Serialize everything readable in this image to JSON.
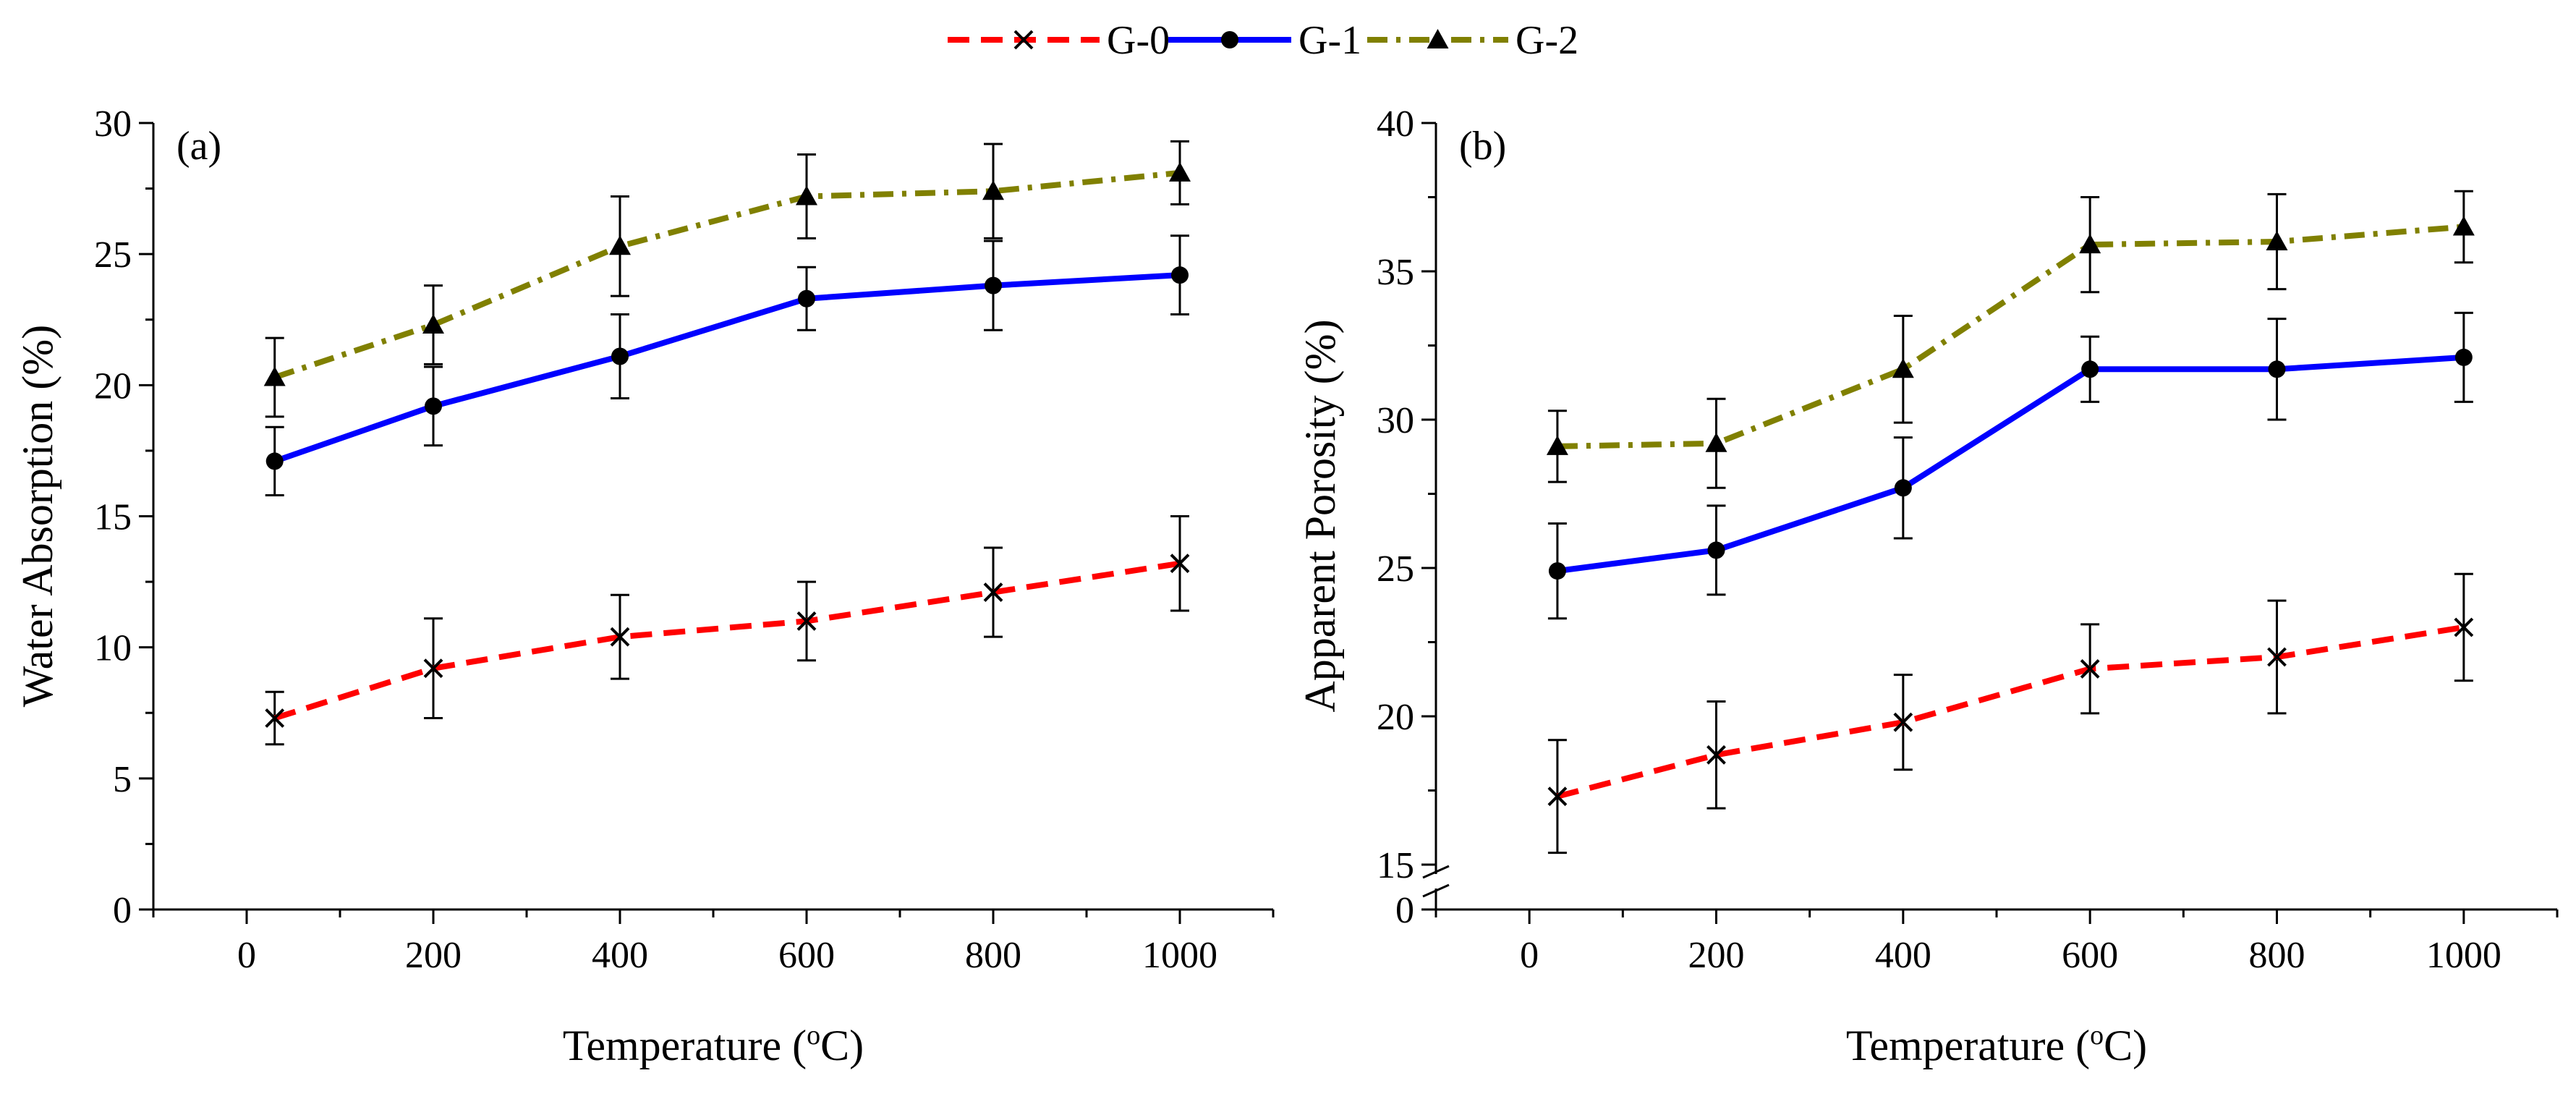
{
  "legend": [
    {
      "label": "G-0",
      "color": "#ff0000",
      "marker": "cross-icon",
      "dash": "dashed"
    },
    {
      "label": "G-1",
      "color": "#0000ff",
      "marker": "circle-icon",
      "dash": "solid"
    },
    {
      "label": "G-2",
      "color": "#808000",
      "marker": "triangle-icon",
      "dash": "dashdot"
    }
  ],
  "chart_data": [
    {
      "type": "line",
      "panel_label": "(a)",
      "xlabel": "Temperature (",
      "xlabel_sup": "o",
      "xlabel_end": "C)",
      "ylabel": "Water Absorption (%)",
      "xlim": [
        -100,
        1100
      ],
      "ylim": [
        0,
        30
      ],
      "xticks": [
        0,
        200,
        400,
        600,
        800,
        1000
      ],
      "xtick_labels": [
        "0",
        "200",
        "400",
        "600",
        "800",
        "1000"
      ],
      "yticks": [
        0,
        5,
        10,
        15,
        20,
        25,
        30
      ],
      "ytick_labels": [
        "0",
        "5",
        "10",
        "15",
        "20",
        "25",
        "30"
      ],
      "x": [
        30,
        200,
        400,
        600,
        800,
        1000
      ],
      "series": [
        {
          "name": "G-0",
          "values": [
            7.3,
            9.2,
            10.4,
            11.0,
            12.1,
            13.2
          ],
          "errors": [
            1.0,
            1.9,
            1.6,
            1.5,
            1.7,
            1.8
          ]
        },
        {
          "name": "G-1",
          "values": [
            17.1,
            19.2,
            21.1,
            23.3,
            23.8,
            24.2
          ],
          "errors": [
            1.3,
            1.5,
            1.6,
            1.2,
            1.7,
            1.5
          ]
        },
        {
          "name": "G-2",
          "values": [
            20.3,
            22.3,
            25.3,
            27.2,
            27.4,
            28.1
          ],
          "errors": [
            1.5,
            1.5,
            1.9,
            1.6,
            1.8,
            1.2
          ]
        }
      ]
    },
    {
      "type": "line",
      "panel_label": "(b)",
      "xlabel": "Temperature (",
      "xlabel_sup": "o",
      "xlabel_end": "C)",
      "ylabel": "Apparent Porosity (%)",
      "xlim": [
        -100,
        1100
      ],
      "ylim": [
        15,
        40
      ],
      "axis_break": [
        0,
        15
      ],
      "xticks": [
        0,
        200,
        400,
        600,
        800,
        1000
      ],
      "xtick_labels": [
        "0",
        "200",
        "400",
        "600",
        "800",
        "1000"
      ],
      "yticks": [
        15,
        20,
        25,
        30,
        35,
        40
      ],
      "ytick_labels": [
        "15",
        "20",
        "25",
        "30",
        "35",
        "40"
      ],
      "ybreak_label": "0",
      "x": [
        30,
        200,
        400,
        600,
        800,
        1000
      ],
      "series": [
        {
          "name": "G-0",
          "values": [
            17.3,
            18.7,
            19.8,
            21.6,
            22.0,
            23.0
          ],
          "errors": [
            1.9,
            1.8,
            1.6,
            1.5,
            1.9,
            1.8
          ]
        },
        {
          "name": "G-1",
          "values": [
            24.9,
            25.6,
            27.7,
            31.7,
            31.7,
            32.1
          ],
          "errors": [
            1.6,
            1.5,
            1.7,
            1.1,
            1.7,
            1.5
          ]
        },
        {
          "name": "G-2",
          "values": [
            29.1,
            29.2,
            31.7,
            35.9,
            36.0,
            36.5
          ],
          "errors": [
            1.2,
            1.5,
            1.8,
            1.6,
            1.6,
            1.2
          ]
        }
      ]
    }
  ]
}
